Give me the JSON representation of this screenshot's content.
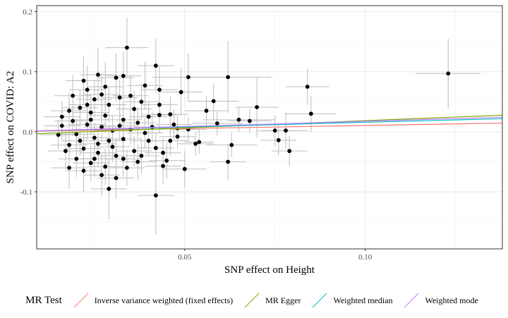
{
  "chart_data": {
    "type": "scatter",
    "title": "",
    "xlabel": "SNP effect on Height",
    "ylabel": "SNP effect on COVID: A2",
    "xlim": [
      0.009,
      0.138
    ],
    "ylim": [
      -0.195,
      0.21
    ],
    "x_ticks": [
      0.05,
      0.1
    ],
    "x_tick_labels": [
      "0.05",
      "0.10"
    ],
    "y_ticks": [
      -0.1,
      0.0,
      0.1,
      0.2
    ],
    "y_tick_labels": [
      "-0.1",
      "0.0",
      "0.1",
      "0.2"
    ],
    "grid": true,
    "legend_position": "bottom",
    "legend_title": "MR Test",
    "lines": [
      {
        "name": "Inverse variance weighted (fixed effects)",
        "color": "#F8766D",
        "intercept": 0,
        "slope": 0.105
      },
      {
        "name": "MR Egger",
        "color": "#7CAE00",
        "intercept": -0.0055,
        "slope": 0.24
      },
      {
        "name": "Weighted median",
        "color": "#00BFC4",
        "intercept": 0,
        "slope": 0.158
      },
      {
        "name": "Weighted mode",
        "color": "#C77CFF",
        "intercept": 0,
        "slope": 0.175
      }
    ],
    "points": [
      {
        "x": 0.123,
        "y": 0.097,
        "xerr": 0.009,
        "yerr": 0.058
      },
      {
        "x": 0.084,
        "y": 0.075,
        "xerr": 0.006,
        "yerr": 0.03
      },
      {
        "x": 0.085,
        "y": 0.03,
        "xerr": 0.007,
        "yerr": 0.03
      },
      {
        "x": 0.078,
        "y": 0.002,
        "xerr": 0.006,
        "yerr": 0.03
      },
      {
        "x": 0.075,
        "y": 0.002,
        "xerr": 0.005,
        "yerr": 0.025
      },
      {
        "x": 0.076,
        "y": -0.014,
        "xerr": 0.005,
        "yerr": 0.025
      },
      {
        "x": 0.079,
        "y": -0.032,
        "xerr": 0.005,
        "yerr": 0.025
      },
      {
        "x": 0.068,
        "y": 0.018,
        "xerr": 0.006,
        "yerr": 0.02
      },
      {
        "x": 0.07,
        "y": 0.041,
        "xerr": 0.006,
        "yerr": 0.05
      },
      {
        "x": 0.062,
        "y": 0.091,
        "xerr": 0.012,
        "yerr": 0.06
      },
      {
        "x": 0.051,
        "y": 0.091,
        "xerr": 0.01,
        "yerr": 0.04
      },
      {
        "x": 0.058,
        "y": 0.051,
        "xerr": 0.007,
        "yerr": 0.03
      },
      {
        "x": 0.065,
        "y": 0.02,
        "xerr": 0.01,
        "yerr": 0.02
      },
      {
        "x": 0.063,
        "y": -0.022,
        "xerr": 0.007,
        "yerr": 0.02
      },
      {
        "x": 0.062,
        "y": -0.05,
        "xerr": 0.005,
        "yerr": 0.03
      },
      {
        "x": 0.05,
        "y": -0.062,
        "xerr": 0.006,
        "yerr": 0.03
      },
      {
        "x": 0.053,
        "y": -0.02,
        "xerr": 0.005,
        "yerr": 0.02
      },
      {
        "x": 0.054,
        "y": -0.017,
        "xerr": 0.004,
        "yerr": 0.02
      },
      {
        "x": 0.059,
        "y": 0.014,
        "xerr": 0.007,
        "yerr": 0.02
      },
      {
        "x": 0.056,
        "y": 0.035,
        "xerr": 0.006,
        "yerr": 0.025
      },
      {
        "x": 0.049,
        "y": 0.066,
        "xerr": 0.006,
        "yerr": 0.04
      },
      {
        "x": 0.046,
        "y": 0.029,
        "xerr": 0.005,
        "yerr": 0.03
      },
      {
        "x": 0.047,
        "y": 0.012,
        "xerr": 0.005,
        "yerr": 0.025
      },
      {
        "x": 0.048,
        "y": 0.006,
        "xerr": 0.005,
        "yerr": 0.02
      },
      {
        "x": 0.048,
        "y": -0.008,
        "xerr": 0.005,
        "yerr": 0.02
      },
      {
        "x": 0.045,
        "y": -0.048,
        "xerr": 0.005,
        "yerr": 0.03
      },
      {
        "x": 0.044,
        "y": -0.057,
        "xerr": 0.005,
        "yerr": 0.03
      },
      {
        "x": 0.042,
        "y": 0.11,
        "xerr": 0.005,
        "yerr": 0.045
      },
      {
        "x": 0.042,
        "y": -0.106,
        "xerr": 0.005,
        "yerr": 0.065
      },
      {
        "x": 0.039,
        "y": 0.077,
        "xerr": 0.005,
        "yerr": 0.04
      },
      {
        "x": 0.043,
        "y": 0.07,
        "xerr": 0.005,
        "yerr": 0.04
      },
      {
        "x": 0.043,
        "y": 0.045,
        "xerr": 0.005,
        "yerr": 0.03
      },
      {
        "x": 0.043,
        "y": 0.028,
        "xerr": 0.005,
        "yerr": 0.03
      },
      {
        "x": 0.041,
        "y": 0.008,
        "xerr": 0.005,
        "yerr": 0.025
      },
      {
        "x": 0.04,
        "y": -0.015,
        "xerr": 0.005,
        "yerr": 0.025
      },
      {
        "x": 0.042,
        "y": -0.027,
        "xerr": 0.005,
        "yerr": 0.025
      },
      {
        "x": 0.038,
        "y": -0.04,
        "xerr": 0.005,
        "yerr": 0.03
      },
      {
        "x": 0.034,
        "y": 0.14,
        "xerr": 0.006,
        "yerr": 0.05
      },
      {
        "x": 0.033,
        "y": 0.093,
        "xerr": 0.005,
        "yerr": 0.04
      },
      {
        "x": 0.031,
        "y": 0.09,
        "xerr": 0.005,
        "yerr": 0.04
      },
      {
        "x": 0.032,
        "y": 0.057,
        "xerr": 0.005,
        "yerr": 0.03
      },
      {
        "x": 0.036,
        "y": 0.038,
        "xerr": 0.005,
        "yerr": 0.03
      },
      {
        "x": 0.033,
        "y": 0.02,
        "xerr": 0.005,
        "yerr": 0.03
      },
      {
        "x": 0.035,
        "y": 0.004,
        "xerr": 0.005,
        "yerr": 0.025
      },
      {
        "x": 0.033,
        "y": -0.012,
        "xerr": 0.005,
        "yerr": 0.025
      },
      {
        "x": 0.036,
        "y": -0.032,
        "xerr": 0.005,
        "yerr": 0.025
      },
      {
        "x": 0.034,
        "y": -0.06,
        "xerr": 0.005,
        "yerr": 0.03
      },
      {
        "x": 0.031,
        "y": -0.077,
        "xerr": 0.005,
        "yerr": 0.035
      },
      {
        "x": 0.026,
        "y": 0.095,
        "xerr": 0.005,
        "yerr": 0.045
      },
      {
        "x": 0.022,
        "y": 0.085,
        "xerr": 0.005,
        "yerr": 0.04
      },
      {
        "x": 0.023,
        "y": 0.07,
        "xerr": 0.005,
        "yerr": 0.04
      },
      {
        "x": 0.027,
        "y": 0.062,
        "xerr": 0.005,
        "yerr": 0.035
      },
      {
        "x": 0.025,
        "y": 0.054,
        "xerr": 0.005,
        "yerr": 0.03
      },
      {
        "x": 0.029,
        "y": 0.045,
        "xerr": 0.005,
        "yerr": 0.03
      },
      {
        "x": 0.021,
        "y": 0.04,
        "xerr": 0.005,
        "yerr": 0.03
      },
      {
        "x": 0.024,
        "y": 0.032,
        "xerr": 0.005,
        "yerr": 0.03
      },
      {
        "x": 0.028,
        "y": 0.027,
        "xerr": 0.005,
        "yerr": 0.03
      },
      {
        "x": 0.019,
        "y": 0.018,
        "xerr": 0.005,
        "yerr": 0.025
      },
      {
        "x": 0.023,
        "y": 0.012,
        "xerr": 0.005,
        "yerr": 0.025
      },
      {
        "x": 0.027,
        "y": 0.008,
        "xerr": 0.005,
        "yerr": 0.025
      },
      {
        "x": 0.03,
        "y": 0.002,
        "xerr": 0.005,
        "yerr": 0.025
      },
      {
        "x": 0.02,
        "y": -0.004,
        "xerr": 0.005,
        "yerr": 0.025
      },
      {
        "x": 0.025,
        "y": -0.01,
        "xerr": 0.005,
        "yerr": 0.025
      },
      {
        "x": 0.029,
        "y": -0.015,
        "xerr": 0.005,
        "yerr": 0.025
      },
      {
        "x": 0.018,
        "y": -0.022,
        "xerr": 0.005,
        "yerr": 0.025
      },
      {
        "x": 0.022,
        "y": -0.028,
        "xerr": 0.005,
        "yerr": 0.025
      },
      {
        "x": 0.026,
        "y": -0.035,
        "xerr": 0.005,
        "yerr": 0.025
      },
      {
        "x": 0.031,
        "y": -0.04,
        "xerr": 0.005,
        "yerr": 0.03
      },
      {
        "x": 0.02,
        "y": -0.045,
        "xerr": 0.005,
        "yerr": 0.03
      },
      {
        "x": 0.024,
        "y": -0.052,
        "xerr": 0.005,
        "yerr": 0.03
      },
      {
        "x": 0.028,
        "y": -0.058,
        "xerr": 0.005,
        "yerr": 0.03
      },
      {
        "x": 0.022,
        "y": -0.065,
        "xerr": 0.005,
        "yerr": 0.035
      },
      {
        "x": 0.027,
        "y": -0.072,
        "xerr": 0.005,
        "yerr": 0.035
      },
      {
        "x": 0.029,
        "y": -0.095,
        "xerr": 0.005,
        "yerr": 0.05
      },
      {
        "x": 0.016,
        "y": 0.01,
        "xerr": 0.005,
        "yerr": 0.025
      },
      {
        "x": 0.015,
        "y": -0.005,
        "xerr": 0.005,
        "yerr": 0.025
      },
      {
        "x": 0.017,
        "y": -0.032,
        "xerr": 0.005,
        "yerr": 0.03
      },
      {
        "x": 0.018,
        "y": 0.035,
        "xerr": 0.005,
        "yerr": 0.03
      },
      {
        "x": 0.037,
        "y": 0.015,
        "xerr": 0.005,
        "yerr": 0.025
      },
      {
        "x": 0.039,
        "y": -0.002,
        "xerr": 0.005,
        "yerr": 0.025
      },
      {
        "x": 0.038,
        "y": 0.05,
        "xerr": 0.005,
        "yerr": 0.03
      },
      {
        "x": 0.035,
        "y": 0.06,
        "xerr": 0.005,
        "yerr": 0.035
      },
      {
        "x": 0.032,
        "y": 0.01,
        "xerr": 0.005,
        "yerr": 0.025
      },
      {
        "x": 0.03,
        "y": -0.025,
        "xerr": 0.005,
        "yerr": 0.025
      },
      {
        "x": 0.024,
        "y": 0.02,
        "xerr": 0.005,
        "yerr": 0.025
      },
      {
        "x": 0.021,
        "y": -0.015,
        "xerr": 0.005,
        "yerr": 0.025
      },
      {
        "x": 0.026,
        "y": -0.02,
        "xerr": 0.005,
        "yerr": 0.025
      },
      {
        "x": 0.023,
        "y": 0.045,
        "xerr": 0.005,
        "yerr": 0.03
      },
      {
        "x": 0.019,
        "y": 0.06,
        "xerr": 0.005,
        "yerr": 0.035
      },
      {
        "x": 0.044,
        "y": -0.035,
        "xerr": 0.005,
        "yerr": 0.025
      },
      {
        "x": 0.046,
        "y": -0.015,
        "xerr": 0.005,
        "yerr": 0.025
      },
      {
        "x": 0.04,
        "y": 0.025,
        "xerr": 0.005,
        "yerr": 0.025
      },
      {
        "x": 0.037,
        "y": -0.05,
        "xerr": 0.005,
        "yerr": 0.03
      },
      {
        "x": 0.033,
        "y": -0.045,
        "xerr": 0.005,
        "yerr": 0.03
      },
      {
        "x": 0.028,
        "y": 0.075,
        "xerr": 0.005,
        "yerr": 0.04
      },
      {
        "x": 0.025,
        "y": -0.045,
        "xerr": 0.005,
        "yerr": 0.03
      },
      {
        "x": 0.018,
        "y": -0.06,
        "xerr": 0.005,
        "yerr": 0.035
      },
      {
        "x": 0.016,
        "y": 0.025,
        "xerr": 0.005,
        "yerr": 0.025
      },
      {
        "x": 0.051,
        "y": 0.004,
        "xerr": 0.005,
        "yerr": 0.02
      }
    ]
  },
  "legend": {
    "title": "MR Test",
    "items": [
      {
        "label": "Inverse variance weighted (fixed effects)",
        "color": "#F8766D"
      },
      {
        "label": "MR Egger",
        "color": "#7CAE00"
      },
      {
        "label": "Weighted median",
        "color": "#00BFC4"
      },
      {
        "label": "Weighted mode",
        "color": "#C77CFF"
      }
    ]
  }
}
